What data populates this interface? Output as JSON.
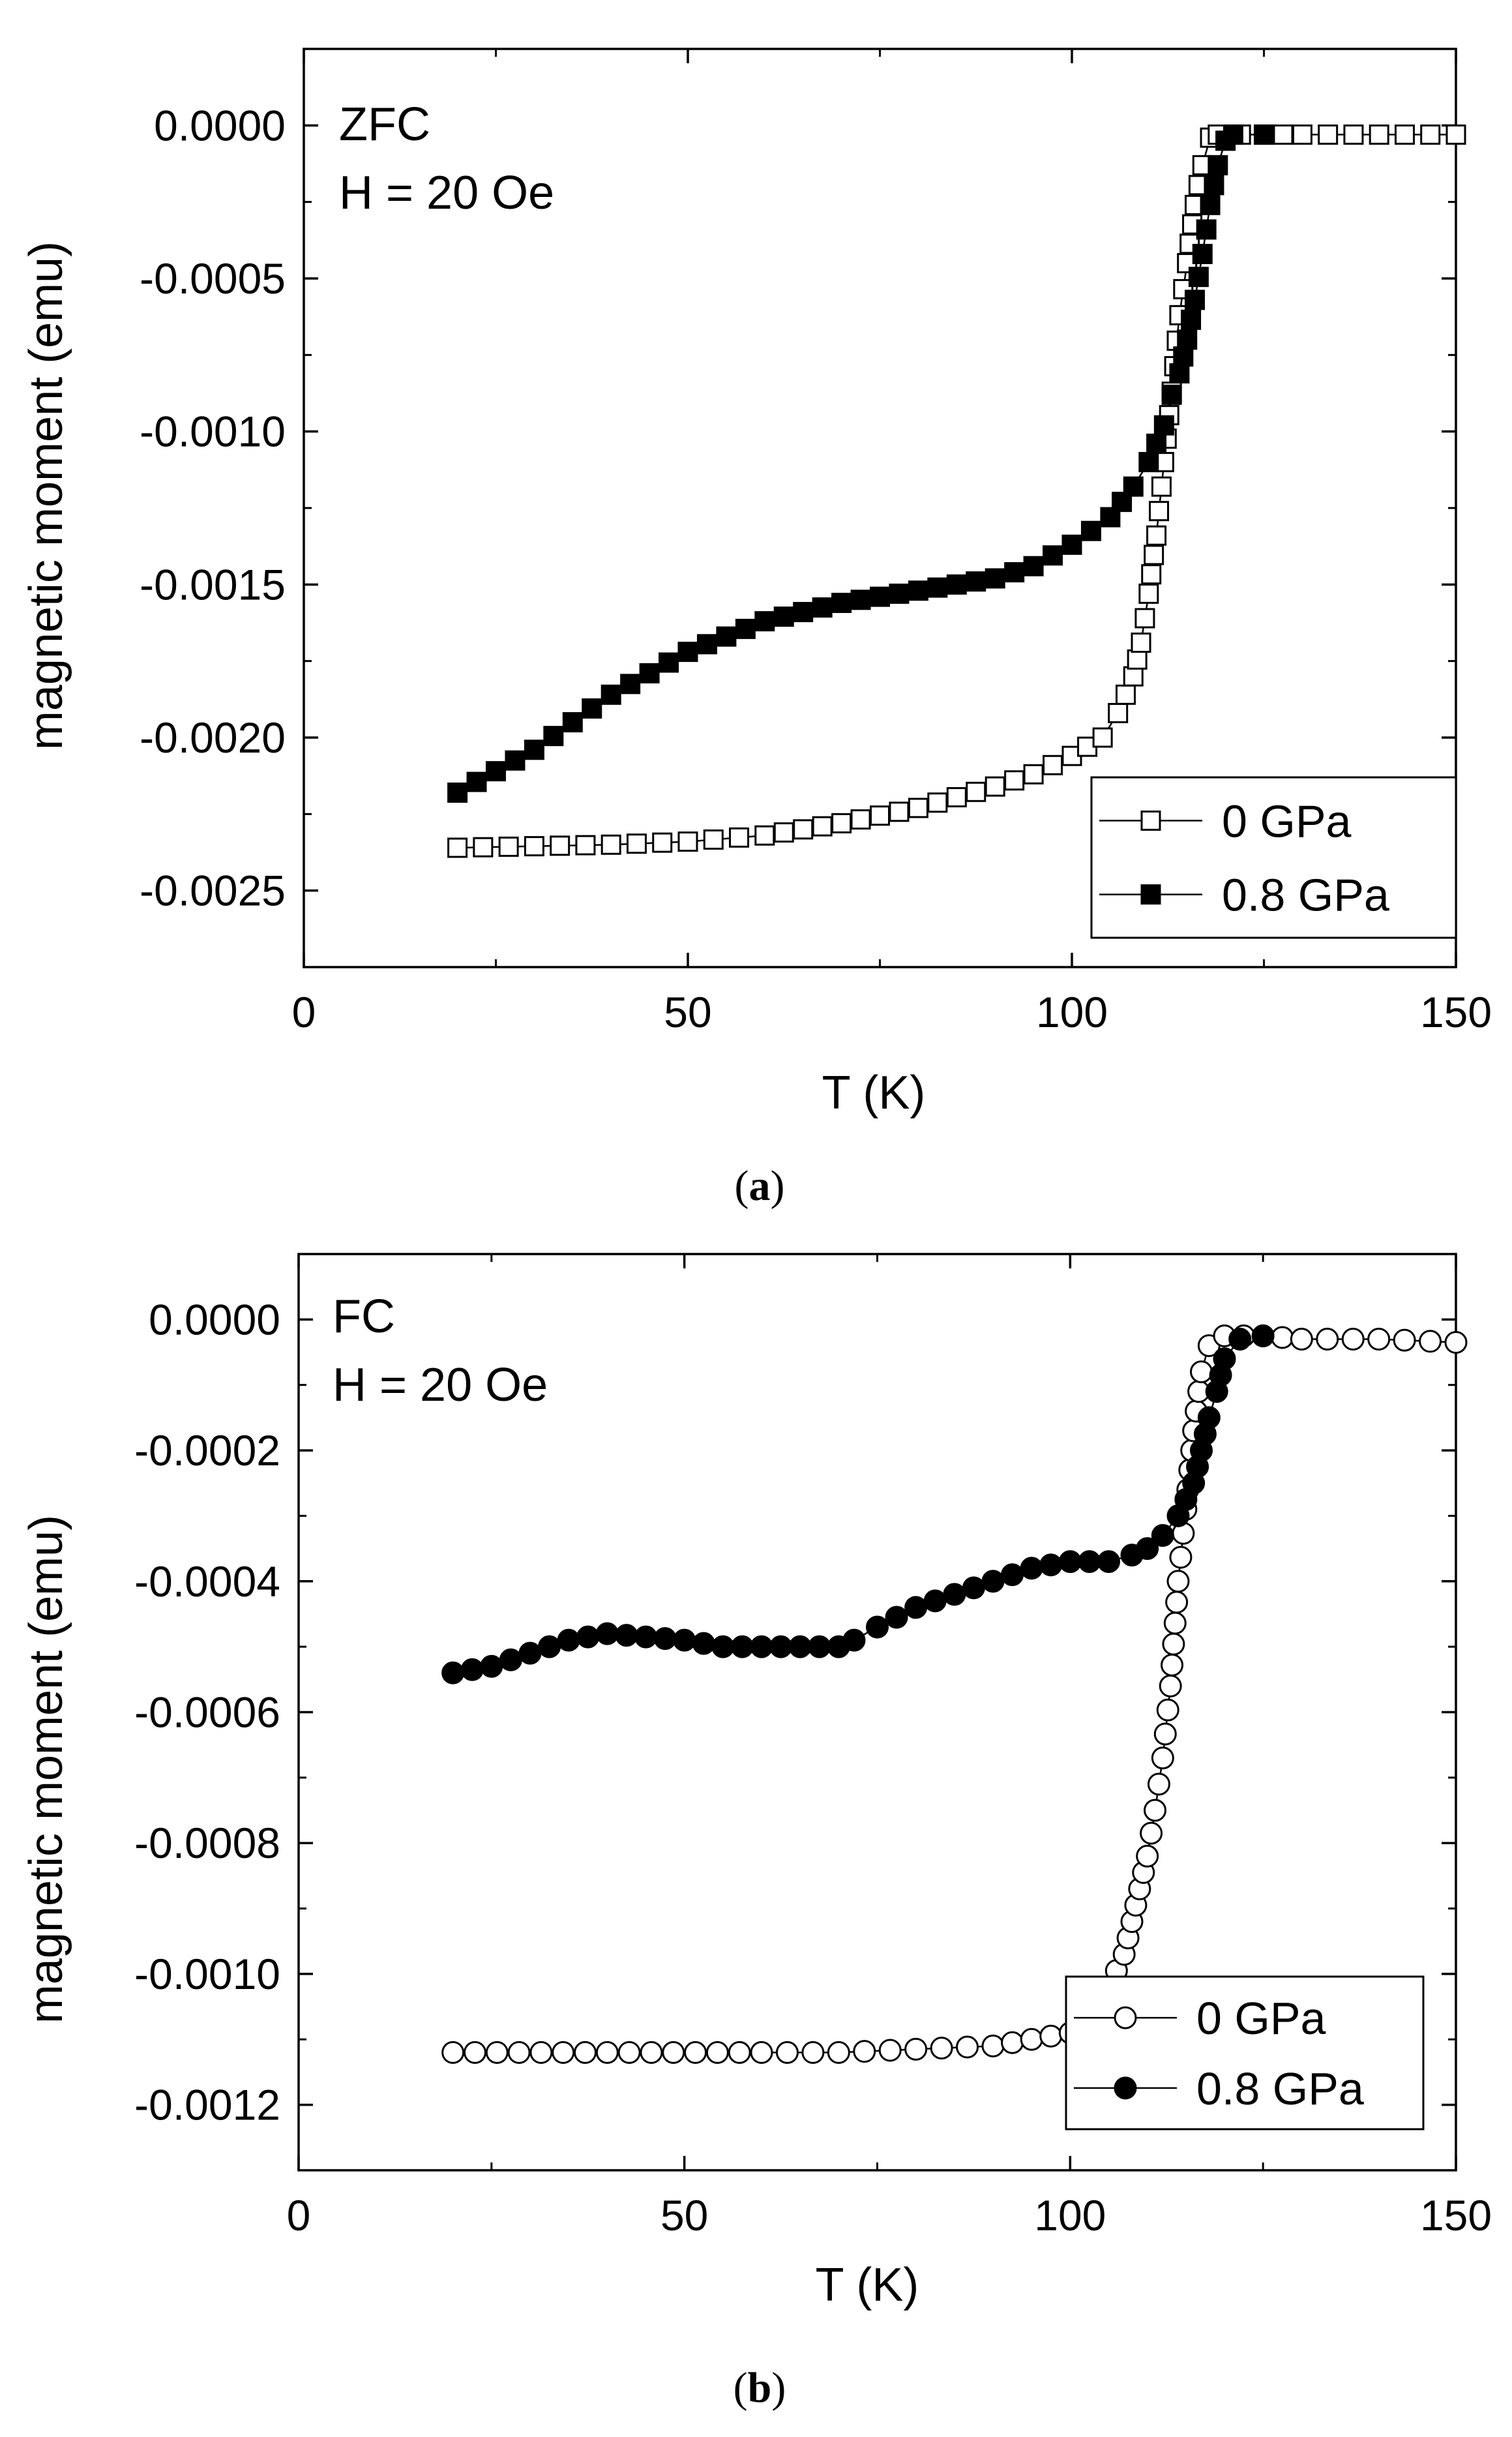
{
  "chart_data": [
    {
      "type": "scatter",
      "panel": "a",
      "caption_open": "(",
      "caption_letter": "a",
      "caption_close": ")",
      "annotation_line1": "ZFC",
      "annotation_line2": "H = 20 Oe",
      "xlabel": "T (K)",
      "ylabel": "magnetic moment (emu)",
      "xlim": [
        0,
        150
      ],
      "ylim": [
        -0.00275,
        0.00025
      ],
      "xticks": [
        0,
        50,
        100,
        150
      ],
      "xtick_labels": [
        "0",
        "50",
        "100",
        "150"
      ],
      "yticks": [
        0.0,
        -0.0005,
        -0.001,
        -0.0015,
        -0.002,
        -0.0025
      ],
      "ytick_labels": [
        "0.0000",
        "-0.0005",
        "-0.0010",
        "-0.0015",
        "-0.0020",
        "-0.0025"
      ],
      "legend_position": "bottom-right",
      "marker": "square",
      "series": [
        {
          "name": "0 GPa",
          "filled": false,
          "points": [
            [
              20,
              -0.00236
            ],
            [
              30,
              -0.002355
            ],
            [
              40,
              -0.00235
            ],
            [
              50,
              -0.00234
            ],
            [
              60,
              -0.00232
            ],
            [
              70,
              -0.00228
            ],
            [
              80,
              -0.00223
            ],
            [
              90,
              -0.00216
            ],
            [
              95,
              -0.00212
            ],
            [
              100,
              -0.00206
            ],
            [
              104,
              -0.002
            ],
            [
              106,
              -0.00192
            ],
            [
              108,
              -0.0018
            ],
            [
              109,
              -0.00169
            ],
            [
              110,
              -0.00153
            ],
            [
              111,
              -0.00134
            ],
            [
              112,
              -0.0011
            ],
            [
              113,
              -0.00087
            ],
            [
              114,
              -0.00062
            ],
            [
              115,
              -0.00045
            ],
            [
              116,
              -0.00026
            ],
            [
              117,
              -0.00013
            ],
            [
              118,
              -4e-05
            ],
            [
              119,
              -3e-05
            ],
            [
              125,
              -3e-05
            ],
            [
              130,
              -3e-05
            ],
            [
              140,
              -3e-05
            ],
            [
              150,
              -3e-05
            ]
          ]
        },
        {
          "name": "0.8 GPa",
          "filled": true,
          "points": [
            [
              20,
              -0.00218
            ],
            [
              30,
              -0.00204
            ],
            [
              40,
              -0.00186
            ],
            [
              50,
              -0.00172
            ],
            [
              60,
              -0.00162
            ],
            [
              70,
              -0.00156
            ],
            [
              80,
              -0.00152
            ],
            [
              90,
              -0.00148
            ],
            [
              95,
              -0.00144
            ],
            [
              100,
              -0.00137
            ],
            [
              105,
              -0.00128
            ],
            [
              108,
              -0.00118
            ],
            [
              110,
              -0.0011
            ],
            [
              112,
              -0.00098
            ],
            [
              113,
              -0.00088
            ],
            [
              114,
              -0.00081
            ],
            [
              115,
              -0.0007
            ],
            [
              116,
              -0.00057
            ],
            [
              117,
              -0.00042
            ],
            [
              118,
              -0.00026
            ],
            [
              119,
              -0.00013
            ],
            [
              120,
              -5e-05
            ],
            [
              121,
              -3e-05
            ],
            [
              125,
              -3e-05
            ]
          ]
        }
      ]
    },
    {
      "type": "scatter",
      "panel": "b",
      "caption_open": "(",
      "caption_letter": "b",
      "caption_close": ")",
      "annotation_line1": "FC",
      "annotation_line2": "H = 20 Oe",
      "xlabel": "T (K)",
      "ylabel": "magnetic moment (emu)",
      "xlim": [
        0,
        150
      ],
      "ylim": [
        -0.0013,
        0.0001
      ],
      "xticks": [
        0,
        50,
        100,
        150
      ],
      "xtick_labels": [
        "0",
        "50",
        "100",
        "150"
      ],
      "yticks": [
        0.0,
        -0.0002,
        -0.0004,
        -0.0006,
        -0.0008,
        -0.001,
        -0.0012
      ],
      "ytick_labels": [
        "0.0000",
        "-0.0002",
        "-0.0004",
        "-0.0006",
        "-0.0008",
        "-0.0010",
        "-0.0012"
      ],
      "legend_position": "bottom-right",
      "marker": "circle",
      "series": [
        {
          "name": "0 GPa",
          "filled": false,
          "points": [
            [
              20,
              -0.00112
            ],
            [
              40,
              -0.00112
            ],
            [
              60,
              -0.00112
            ],
            [
              70,
              -0.00112
            ],
            [
              80,
              -0.001115
            ],
            [
              90,
              -0.00111
            ],
            [
              95,
              -0.0011
            ],
            [
              100,
              -0.00109
            ],
            [
              103,
              -0.00106
            ],
            [
              105,
              -0.00102
            ],
            [
              107,
              -0.00097
            ],
            [
              108,
              -0.00092
            ],
            [
              109,
              -0.00087
            ],
            [
              110,
              -0.00082
            ],
            [
              111,
              -0.00075
            ],
            [
              112,
              -0.00067
            ],
            [
              113,
              -0.00056
            ],
            [
              114,
              -0.0004
            ],
            [
              115,
              -0.00029
            ],
            [
              116,
              -0.00017
            ],
            [
              117,
              -8e-05
            ],
            [
              118,
              -4e-05
            ],
            [
              120,
              -2.5e-05
            ],
            [
              125,
              -2.5e-05
            ],
            [
              130,
              -3e-05
            ],
            [
              140,
              -3e-05
            ],
            [
              150,
              -3.5e-05
            ]
          ]
        },
        {
          "name": "0.8 GPa",
          "filled": true,
          "points": [
            [
              20,
              -0.00054
            ],
            [
              25,
              -0.00053
            ],
            [
              30,
              -0.00051
            ],
            [
              35,
              -0.00049
            ],
            [
              40,
              -0.00048
            ],
            [
              45,
              -0.000485
            ],
            [
              50,
              -0.00049
            ],
            [
              55,
              -0.0005
            ],
            [
              60,
              -0.0005
            ],
            [
              65,
              -0.0005
            ],
            [
              70,
              -0.0005
            ],
            [
              72,
              -0.00049
            ],
            [
              75,
              -0.00047
            ],
            [
              80,
              -0.00044
            ],
            [
              85,
              -0.00042
            ],
            [
              90,
              -0.0004
            ],
            [
              95,
              -0.00038
            ],
            [
              100,
              -0.00037
            ],
            [
              105,
              -0.00037
            ],
            [
              108,
              -0.00036
            ],
            [
              110,
              -0.00035
            ],
            [
              112,
              -0.00033
            ],
            [
              114,
              -0.0003
            ],
            [
              116,
              -0.00025
            ],
            [
              117,
              -0.0002
            ],
            [
              118,
              -0.00015
            ],
            [
              119,
              -0.00011
            ],
            [
              120,
              -6e-05
            ],
            [
              122,
              -3e-05
            ],
            [
              125,
              -2.5e-05
            ]
          ]
        }
      ]
    }
  ]
}
